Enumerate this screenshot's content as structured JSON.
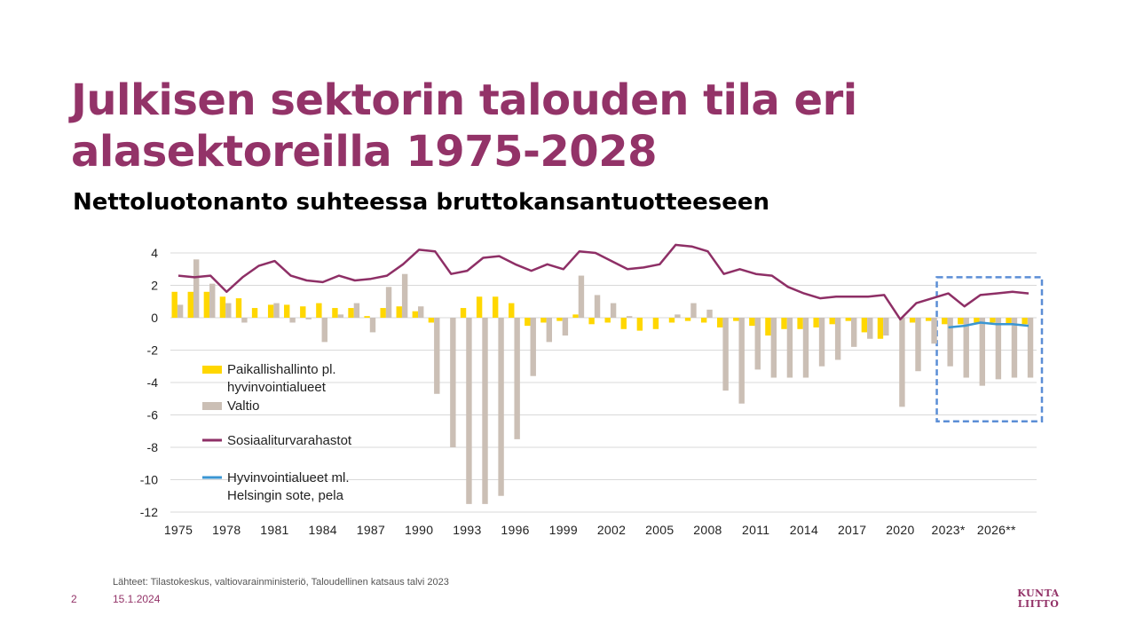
{
  "slide": {
    "title": "Julkisen sektorin talouden tila eri alasektoreilla 1975-2028",
    "subtitle": "Nettoluotonanto suhteessa bruttokansantuotteeseen",
    "source": "Lähteet: Tilastokeskus, valtiovarainministeriö, Taloudellinen katsaus talvi 2023",
    "slide_number": "2",
    "date": "15.1.2024",
    "logo_text": [
      "KUNTA",
      "LIITTO"
    ],
    "brand_color": "#933368"
  },
  "chart_data": {
    "type": "bar",
    "title": "",
    "xlabel": "",
    "ylabel": "",
    "ylim": [
      -12,
      4
    ],
    "yticks": [
      4,
      2,
      0,
      -2,
      -4,
      -6,
      -8,
      -10,
      -12
    ],
    "grid": true,
    "legend_placement": "left-inside",
    "x": [
      "1975",
      "1976",
      "1977",
      "1978",
      "1979",
      "1980",
      "1981",
      "1982",
      "1983",
      "1984",
      "1985",
      "1986",
      "1987",
      "1988",
      "1989",
      "1990",
      "1991",
      "1992",
      "1993",
      "1994",
      "1995",
      "1996",
      "1997",
      "1998",
      "1999",
      "2000",
      "2001",
      "2002",
      "2003",
      "2004",
      "2005",
      "2006",
      "2007",
      "2008",
      "2009",
      "2010",
      "2011",
      "2012",
      "2013",
      "2014",
      "2015",
      "2016",
      "2017",
      "2018",
      "2019",
      "2020",
      "2021",
      "2022",
      "2023*",
      "2024*",
      "2025*",
      "2026**",
      "2027**",
      "2028**"
    ],
    "x_tick_labels": [
      {
        "index": 0,
        "label": "1975"
      },
      {
        "index": 3,
        "label": "1978"
      },
      {
        "index": 6,
        "label": "1981"
      },
      {
        "index": 9,
        "label": "1984"
      },
      {
        "index": 12,
        "label": "1987"
      },
      {
        "index": 15,
        "label": "1990"
      },
      {
        "index": 18,
        "label": "1993"
      },
      {
        "index": 21,
        "label": "1996"
      },
      {
        "index": 24,
        "label": "1999"
      },
      {
        "index": 27,
        "label": "2002"
      },
      {
        "index": 30,
        "label": "2005"
      },
      {
        "index": 33,
        "label": "2008"
      },
      {
        "index": 36,
        "label": "2011"
      },
      {
        "index": 39,
        "label": "2014"
      },
      {
        "index": 42,
        "label": "2017"
      },
      {
        "index": 45,
        "label": "2020"
      },
      {
        "index": 48,
        "label": "2023*"
      },
      {
        "index": 51,
        "label": "2026**"
      }
    ],
    "series": [
      {
        "name": "Paikallishallinto pl. hyvinvointialueet",
        "type": "bar",
        "color": "#FFD700",
        "values": [
          1.6,
          1.6,
          1.6,
          1.3,
          1.2,
          0.6,
          0.8,
          0.8,
          0.7,
          0.9,
          0.6,
          0.6,
          0.1,
          0.6,
          0.7,
          0.4,
          -0.3,
          0,
          0.6,
          1.3,
          1.3,
          0.9,
          -0.5,
          -0.3,
          -0.2,
          0.2,
          -0.4,
          -0.3,
          -0.7,
          -0.8,
          -0.7,
          -0.3,
          -0.2,
          -0.3,
          -0.6,
          -0.2,
          -0.5,
          -1.1,
          -0.7,
          -0.7,
          -0.6,
          -0.4,
          -0.2,
          -0.9,
          -1.3,
          0,
          -0.3,
          -0.2,
          -0.4,
          -0.4,
          -0.3,
          -0.3,
          -0.4,
          -0.4
        ]
      },
      {
        "name": "Valtio",
        "type": "bar",
        "color": "#CBBFB5",
        "values": [
          0.8,
          3.6,
          2.1,
          0.9,
          -0.3,
          0,
          0.9,
          -0.3,
          -0.1,
          -1.5,
          0.2,
          0.9,
          -0.9,
          1.9,
          2.7,
          0.7,
          -4.7,
          -8,
          -11.5,
          -11.5,
          -11,
          -7.5,
          -3.6,
          -1.5,
          -1.1,
          2.6,
          1.4,
          0.9,
          0.1,
          0,
          0,
          0.2,
          0.9,
          0.5,
          -4.5,
          -5.3,
          -3.2,
          -3.7,
          -3.7,
          -3.7,
          -3,
          -2.6,
          -1.8,
          -1.3,
          -1.1,
          -5.5,
          -3.3,
          -1.6,
          -3,
          -3.7,
          -4.2,
          -3.8,
          -3.7,
          -3.7
        ]
      },
      {
        "name": "Sosiaaliturvarahastot",
        "type": "line",
        "color": "#8E2F66",
        "values": [
          2.6,
          2.5,
          2.6,
          1.6,
          2.5,
          3.2,
          3.5,
          2.6,
          2.3,
          2.2,
          2.6,
          2.3,
          2.4,
          2.6,
          3.3,
          4.2,
          4.1,
          2.7,
          2.9,
          3.7,
          3.8,
          3.3,
          2.9,
          3.3,
          3.0,
          4.1,
          4.0,
          3.5,
          3.0,
          3.1,
          3.3,
          4.5,
          4.4,
          4.1,
          2.7,
          3.0,
          2.7,
          2.6,
          1.9,
          1.5,
          1.2,
          1.3,
          1.3,
          1.3,
          1.4,
          -0.1,
          0.9,
          1.2,
          1.5,
          0.7,
          1.4,
          1.5,
          1.6,
          1.5
        ]
      },
      {
        "name": "Hyvinvointialueet ml. Helsingin sote, pela",
        "type": "line",
        "color": "#3A96D3",
        "values": [
          null,
          null,
          null,
          null,
          null,
          null,
          null,
          null,
          null,
          null,
          null,
          null,
          null,
          null,
          null,
          null,
          null,
          null,
          null,
          null,
          null,
          null,
          null,
          null,
          null,
          null,
          null,
          null,
          null,
          null,
          null,
          null,
          null,
          null,
          null,
          null,
          null,
          null,
          null,
          null,
          null,
          null,
          null,
          null,
          null,
          null,
          null,
          null,
          -0.6,
          -0.5,
          -0.3,
          -0.4,
          -0.4,
          -0.5
        ]
      }
    ],
    "legend": [
      {
        "line1": "Paikallishallinto pl.",
        "line2": "hyvinvointialueet",
        "color": "#FFD700",
        "kind": "bar"
      },
      {
        "line1": "Valtio",
        "line2": "",
        "color": "#CBBFB5",
        "kind": "bar"
      },
      {
        "line1": "Sosiaaliturvarahastot",
        "line2": "",
        "color": "#8E2F66",
        "kind": "line"
      },
      {
        "line1": "Hyvinvointialueet ml.",
        "line2": "Helsingin sote, pela",
        "color": "#3A96D3",
        "kind": "line"
      }
    ],
    "highlight_box": {
      "from": "2023*",
      "to": "2028**",
      "ymin": -6.4,
      "ymax": 2.5,
      "color": "#5B8ED6",
      "style": "dashed"
    }
  }
}
